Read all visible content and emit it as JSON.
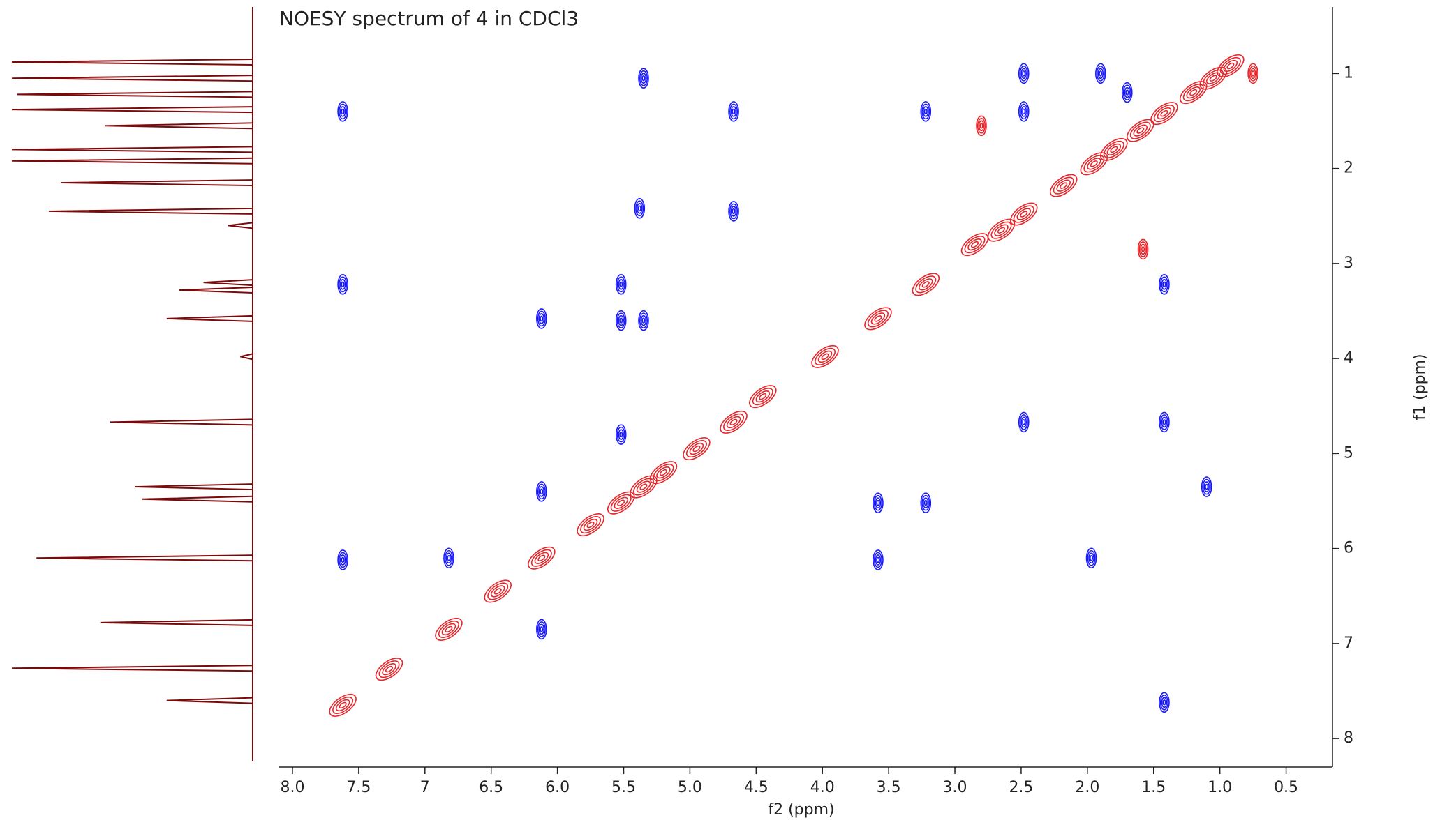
{
  "chart_data": {
    "type": "contour",
    "title": "NOESY spectrum of 4 in CDCl3",
    "x_label": "f2 (ppm)",
    "y_label": "f1 (ppm)",
    "xlim": [
      8.1,
      0.15
    ],
    "ylim": [
      8.3,
      0.3
    ],
    "xticks": [
      {
        "value": 8,
        "label": "8.0"
      },
      7.5,
      7,
      6.5,
      {
        "value": 6,
        "label": "6.0"
      },
      5.5,
      {
        "value": 5,
        "label": "5.0"
      },
      4.5,
      {
        "value": 4,
        "label": "4.0"
      },
      3.5,
      {
        "value": 3,
        "label": "3.0"
      },
      2.5,
      {
        "value": 2,
        "label": "2.0"
      },
      1.5,
      {
        "value": 1,
        "label": "1.0"
      },
      0.5
    ],
    "yticks": [
      1,
      2,
      3,
      4,
      5,
      6,
      7,
      8
    ],
    "series": [
      {
        "color": "#e8262a",
        "x": [
          7.62,
          7.27,
          6.82,
          6.12,
          5.52,
          5.35,
          5.2,
          4.95,
          4.67,
          4.45,
          3.98,
          3.58,
          3.22,
          2.85,
          2.65,
          2.48,
          2.18,
          1.95,
          1.8,
          1.6,
          1.42,
          1.2,
          1.05,
          0.92,
          2.8,
          1.58,
          0.75,
          6.45,
          5.75
        ],
        "y": [
          7.65,
          7.27,
          6.85,
          6.1,
          5.52,
          5.35,
          5.2,
          4.95,
          4.67,
          4.4,
          3.98,
          3.58,
          3.22,
          2.8,
          2.65,
          2.48,
          2.18,
          1.95,
          1.8,
          1.6,
          1.42,
          1.2,
          1.05,
          0.92,
          1.55,
          2.85,
          1.0,
          6.45,
          5.75
        ]
      },
      {
        "color": "#1a1aff",
        "x": [
          7.62,
          7.62,
          7.62,
          5.35,
          4.67,
          4.67,
          5.38,
          5.52,
          5.52,
          5.35,
          6.12,
          3.22,
          2.48,
          2.48,
          1.42,
          1.42,
          1.42,
          1.1,
          3.58,
          3.22,
          3.58,
          1.97,
          2.48,
          6.12,
          6.82,
          6.12,
          5.52,
          1.9,
          1.7
        ],
        "y": [
          1.4,
          3.22,
          6.12,
          1.05,
          1.4,
          2.45,
          2.42,
          3.22,
          3.6,
          3.6,
          3.58,
          1.4,
          1.0,
          1.4,
          3.22,
          4.67,
          7.62,
          5.35,
          5.52,
          5.52,
          6.12,
          6.1,
          4.67,
          6.85,
          6.1,
          5.4,
          4.8,
          1.0,
          1.2
        ]
      }
    ],
    "projection": {
      "color": "#7a0a0a",
      "x": [
        0.88,
        1.05,
        1.22,
        1.38,
        1.55,
        1.8,
        1.92,
        2.15,
        2.45,
        2.6,
        3.2,
        3.28,
        3.58,
        3.98,
        4.67,
        5.35,
        5.48,
        6.1,
        6.78,
        7.26,
        7.6
      ],
      "values": [
        0.98,
        0.98,
        0.96,
        0.98,
        0.6,
        0.98,
        0.98,
        0.78,
        0.83,
        0.1,
        0.2,
        0.3,
        0.35,
        0.05,
        0.58,
        0.48,
        0.45,
        0.88,
        0.62,
        0.98,
        0.35
      ]
    }
  }
}
